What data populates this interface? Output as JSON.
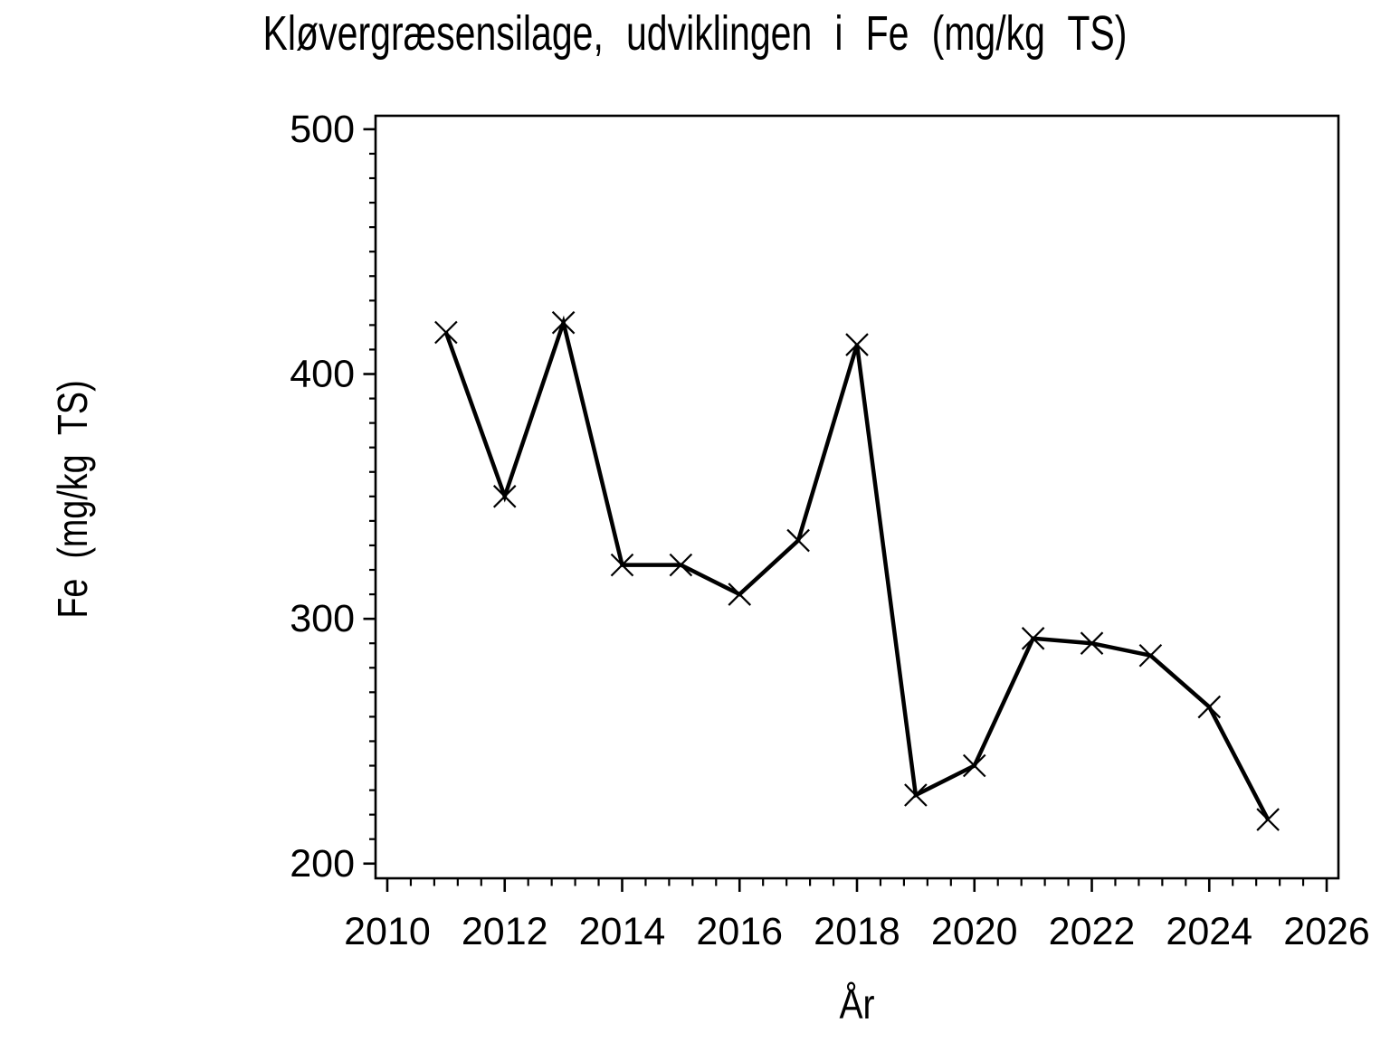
{
  "chart_data": {
    "type": "line",
    "title": "Kløvergræsensilage, udviklingen i Fe (mg/kg TS)",
    "xlabel": "År",
    "ylabel": "Fe (mg/kg TS)",
    "x": [
      2011,
      2012,
      2013,
      2014,
      2015,
      2016,
      2017,
      2018,
      2019,
      2020,
      2021,
      2022,
      2023,
      2024,
      2025
    ],
    "values": [
      417,
      350,
      421,
      322,
      322,
      310,
      332,
      412,
      228,
      240,
      292,
      290,
      285,
      264,
      218
    ],
    "x_ticks_major": [
      2010,
      2012,
      2014,
      2016,
      2018,
      2020,
      2022,
      2024,
      2026
    ],
    "y_ticks_major": [
      200,
      300,
      400,
      500
    ],
    "x_minor_step": 0.4,
    "y_minor_step": 10,
    "x_tick_range": [
      2010,
      2026
    ],
    "y_tick_range": [
      200,
      500
    ],
    "xlim": [
      2009.8,
      2026.2
    ],
    "ylim": [
      194,
      505.5
    ],
    "grid": false,
    "legend": false,
    "marker": "x",
    "line_color": "#000000",
    "background_color": "#ffffff"
  }
}
